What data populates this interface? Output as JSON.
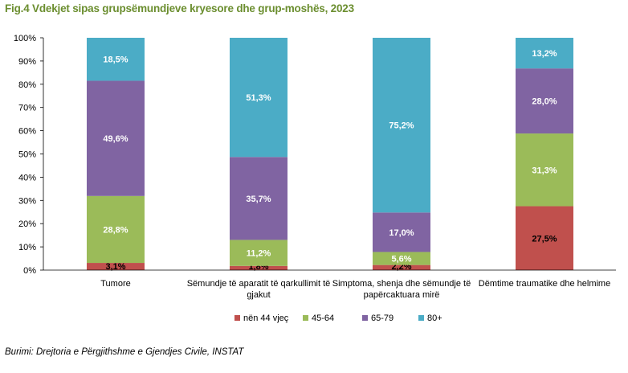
{
  "title": "Fig.4 Vdekjet sipas grupsëmundjeve kryesore dhe grup-moshës, 2023",
  "source": "Burimi: Drejtoria e Përgjithshme e Gjendjes Civile, INSTAT",
  "chart_data": {
    "type": "bar",
    "stacked": "percent",
    "title": "Fig.4 Vdekjet sipas grupsëmundjeve kryesore dhe grup-moshës, 2023",
    "xlabel": "",
    "ylabel": "",
    "ylim": [
      0,
      100
    ],
    "yticks": [
      "0%",
      "10%",
      "20%",
      "30%",
      "40%",
      "50%",
      "60%",
      "70%",
      "80%",
      "90%",
      "100%"
    ],
    "categories": [
      [
        "Tumore"
      ],
      [
        "Sëmundje të aparatit të qarkullimit të",
        "gjakut"
      ],
      [
        "Simptoma, shenja dhe sëmundje të",
        "papërcaktuara mirë"
      ],
      [
        "Dëmtime traumatike dhe helmime"
      ]
    ],
    "series": [
      {
        "name": "nën 44 vjeç",
        "color": "#c0504d",
        "values": [
          3.1,
          1.8,
          2.2,
          27.5
        ],
        "labels": [
          "3,1%",
          "1,8%",
          "2,2%",
          "27,5%"
        ]
      },
      {
        "name": "45-64",
        "color": "#9bbb59",
        "values": [
          28.8,
          11.2,
          5.6,
          31.3
        ],
        "labels": [
          "28,8%",
          "11,2%",
          "5,6%",
          "31,3%"
        ]
      },
      {
        "name": "65-79",
        "color": "#8064a2",
        "values": [
          49.6,
          35.7,
          17.0,
          28.0
        ],
        "labels": [
          "49,6%",
          "35,7%",
          "17,0%",
          "28,0%"
        ]
      },
      {
        "name": "80+",
        "color": "#4bacc6",
        "values": [
          18.5,
          51.3,
          75.2,
          13.2
        ],
        "labels": [
          "18,5%",
          "51,3%",
          "75,2%",
          "13,2%"
        ]
      }
    ],
    "grid": false,
    "legend": "bottom"
  }
}
